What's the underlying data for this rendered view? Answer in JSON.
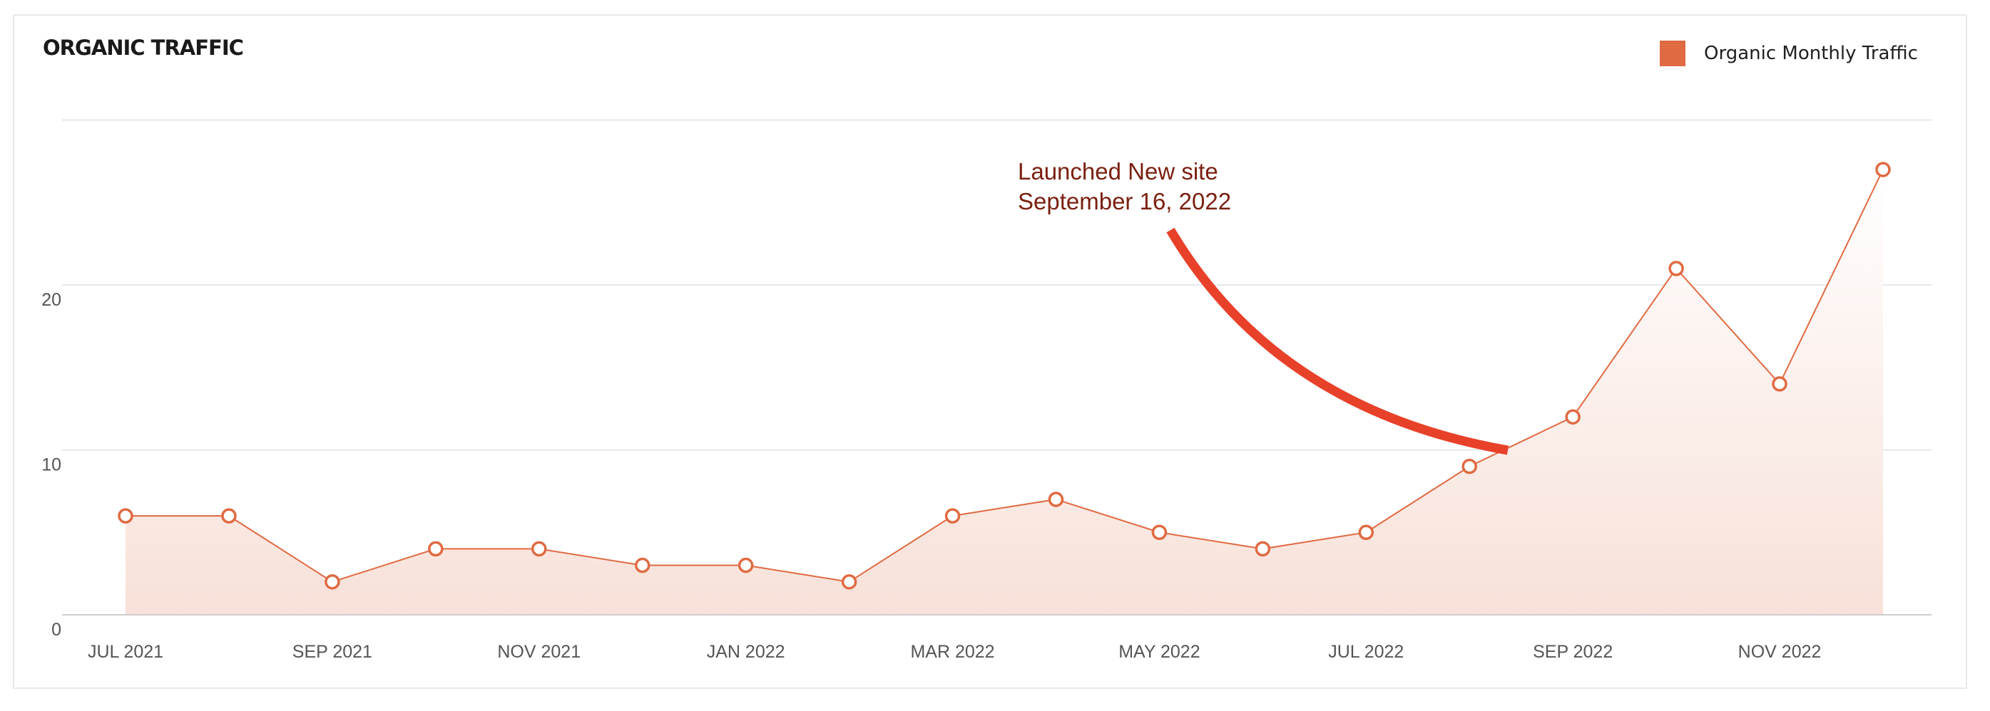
{
  "card": {
    "title": "ORGANIC TRAFFIC"
  },
  "legend": {
    "label": "Organic Monthly Traffic",
    "color": "#e06a42"
  },
  "annotation": {
    "line1": "Launched New site",
    "line2": "September 16, 2022",
    "text_color": "#7a2010",
    "arrow_color": "#e8412a"
  },
  "colors": {
    "line": "#e06a42",
    "fill_top": "#fdf6f4",
    "fill_bottom": "#f8e1d9",
    "grid": "#e6e8e9",
    "baseline": "#cfcfcf"
  },
  "chart_data": {
    "type": "area",
    "title": "ORGANIC TRAFFIC",
    "xlabel": "",
    "ylabel": "",
    "ylim": [
      0,
      30
    ],
    "yticks": [
      0,
      10,
      20
    ],
    "grid": true,
    "legend_position": "top-right",
    "x": [
      "JUL 2021",
      "AUG 2021",
      "SEP 2021",
      "OCT 2021",
      "NOV 2021",
      "DEC 2021",
      "JAN 2022",
      "FEB 2022",
      "MAR 2022",
      "APR 2022",
      "MAY 2022",
      "JUN 2022",
      "JUL 2022",
      "AUG 2022",
      "SEP 2022",
      "OCT 2022",
      "NOV 2022",
      "DEC 2022"
    ],
    "x_tick_labels": [
      "JUL 2021",
      "SEP 2021",
      "NOV 2021",
      "JAN 2022",
      "MAR 2022",
      "MAY 2022",
      "JUL 2022",
      "SEP 2022",
      "NOV 2022"
    ],
    "series": [
      {
        "name": "Organic Monthly Traffic",
        "values": [
          6,
          6,
          2,
          4,
          4,
          3,
          3,
          2,
          6,
          7,
          5,
          4,
          5,
          9,
          12,
          21,
          14,
          27
        ]
      }
    ],
    "annotations": [
      {
        "text": "Launched New site September 16, 2022",
        "target": "SEP 2022"
      }
    ]
  }
}
